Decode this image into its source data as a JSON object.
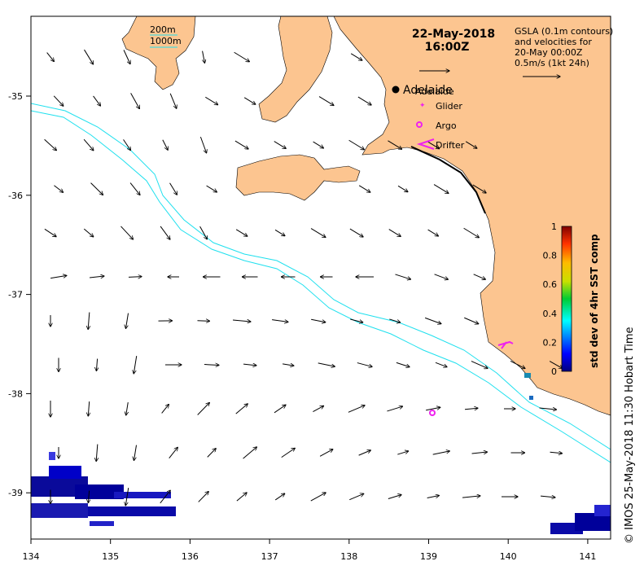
{
  "map": {
    "title_date": "22-May-2018",
    "title_time": "16:00Z",
    "lon_ticks": [
      "134",
      "135",
      "136",
      "137",
      "138",
      "139",
      "140",
      "141"
    ],
    "lat_ticks": [
      "-35",
      "-36",
      "-37",
      "-38",
      "-39"
    ],
    "lon_values": [
      134,
      135,
      136,
      137,
      138,
      139,
      140,
      141
    ],
    "lat_values": [
      -35,
      -36,
      -37,
      -38,
      -39
    ],
    "lon_range": [
      134,
      141.3
    ],
    "lat_range": [
      -34.2,
      -39.6
    ],
    "colors": {
      "land": "#fcc590",
      "contour": "#1fe0ee",
      "markers": "#ee22ee",
      "frame": "#000000"
    }
  },
  "bathymetry_legend": {
    "line1": "200m",
    "line2": "1000m"
  },
  "gsla_info": {
    "line1": "GSLA (0.1m contours)",
    "line2": "and velocities for",
    "line3": "20-May 00:00Z",
    "line4": "0.5m/s (1kt 24h)"
  },
  "markers": {
    "city": "Adelaide",
    "city_overlap": "Adelaide",
    "glider": "Glider",
    "argo": "Argo",
    "drifter": "Drifter"
  },
  "colorbar": {
    "label": "std dev of 4hr SST comp",
    "ticks": [
      "1",
      "0.8",
      "0.6",
      "0.4",
      "0.2",
      "0"
    ],
    "tick_values": [
      1,
      0.8,
      0.6,
      0.4,
      0.2,
      0
    ]
  },
  "credit": "© IMOS 25-May-2018 11:30 Hobart Time"
}
